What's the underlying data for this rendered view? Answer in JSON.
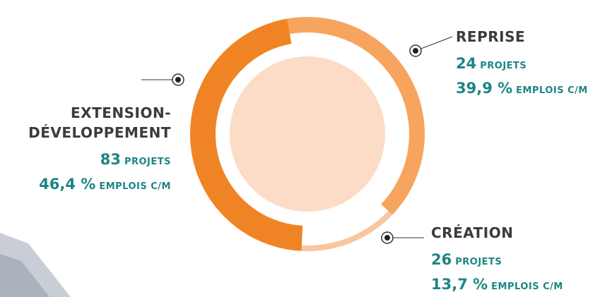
{
  "chart_data": {
    "type": "donut",
    "categories": [
      "REPRISE",
      "CRÉATION",
      "EXTENSION-DÉVELOPPEMENT"
    ],
    "values": [
      39.9,
      13.7,
      46.4
    ],
    "value_labels": [
      "39,9 %",
      "13,7 %",
      "46,4 %"
    ],
    "value_unit": "EMPLOIS C/M",
    "projects": [
      24,
      26,
      83
    ],
    "projects_unit": "PROJETS",
    "colors": [
      "#f6a45e",
      "#f9c6a0",
      "#f08424"
    ]
  }
}
